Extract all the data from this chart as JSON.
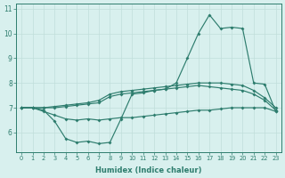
{
  "xlabel": "Humidex (Indice chaleur)",
  "color": "#2e7d6e",
  "bg_color": "#d8f0ee",
  "grid_color": "#c0deda",
  "ylim": [
    5.2,
    11.2
  ],
  "xlim": [
    -0.5,
    23.5
  ],
  "yticks": [
    6,
    7,
    8,
    9,
    10,
    11
  ],
  "xticks": [
    0,
    1,
    2,
    3,
    4,
    5,
    6,
    7,
    8,
    9,
    10,
    11,
    12,
    13,
    14,
    15,
    16,
    17,
    18,
    19,
    20,
    21,
    22,
    23
  ],
  "x": [
    0,
    1,
    2,
    3,
    4,
    5,
    6,
    7,
    8,
    9,
    10,
    11,
    12,
    13,
    14,
    15,
    16,
    17,
    18,
    19,
    20,
    21,
    22,
    23
  ],
  "line_main": [
    7.0,
    7.0,
    6.9,
    6.45,
    5.75,
    5.6,
    5.65,
    5.55,
    5.6,
    6.55,
    7.55,
    7.6,
    7.7,
    7.75,
    8.0,
    9.0,
    10.0,
    10.75,
    10.2,
    10.25,
    10.2,
    8.0,
    7.95,
    6.85
  ],
  "line_upper": [
    7.0,
    7.0,
    7.0,
    7.05,
    7.1,
    7.15,
    7.2,
    7.3,
    7.55,
    7.65,
    7.7,
    7.75,
    7.8,
    7.85,
    7.9,
    7.95,
    8.0,
    8.0,
    8.0,
    7.95,
    7.9,
    7.7,
    7.4,
    7.0
  ],
  "line_mid": [
    7.0,
    7.0,
    7.0,
    7.0,
    7.05,
    7.1,
    7.15,
    7.2,
    7.45,
    7.55,
    7.6,
    7.65,
    7.7,
    7.75,
    7.8,
    7.85,
    7.9,
    7.85,
    7.8,
    7.75,
    7.7,
    7.55,
    7.3,
    6.9
  ],
  "line_lower": [
    7.0,
    7.0,
    6.85,
    6.7,
    6.55,
    6.5,
    6.55,
    6.5,
    6.55,
    6.6,
    6.6,
    6.65,
    6.7,
    6.75,
    6.8,
    6.85,
    6.9,
    6.9,
    6.95,
    7.0,
    7.0,
    7.0,
    7.0,
    6.85
  ]
}
